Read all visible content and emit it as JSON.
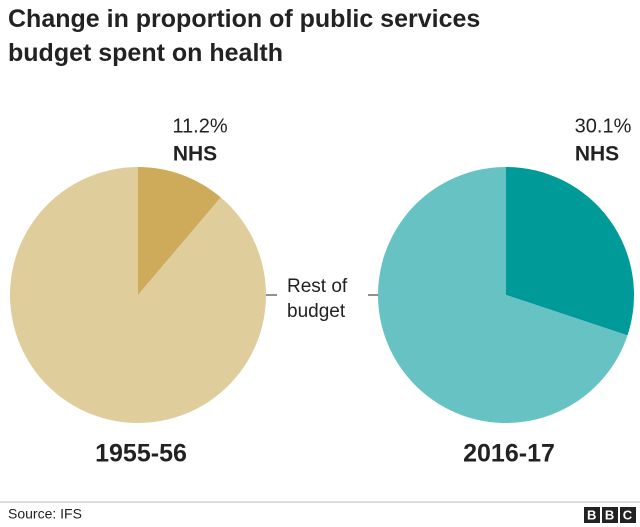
{
  "title": "Change in proportion of public services budget spent on health",
  "source": "Source: IFS",
  "logo": "BBC",
  "chart_data": [
    {
      "type": "pie",
      "title": "1955-56",
      "categories": [
        "NHS",
        "Rest of budget"
      ],
      "values": [
        11.2,
        88.8
      ],
      "value_labels": [
        "11.2%",
        null
      ],
      "colors": [
        "#cdab5a",
        "#e0cd9c"
      ]
    },
    {
      "type": "pie",
      "title": "2016-17",
      "categories": [
        "NHS",
        null
      ],
      "values": [
        30.1,
        69.9
      ],
      "value_labels": [
        "30.1%",
        null
      ],
      "colors": [
        "#009a98",
        "#66c2c3"
      ]
    }
  ]
}
